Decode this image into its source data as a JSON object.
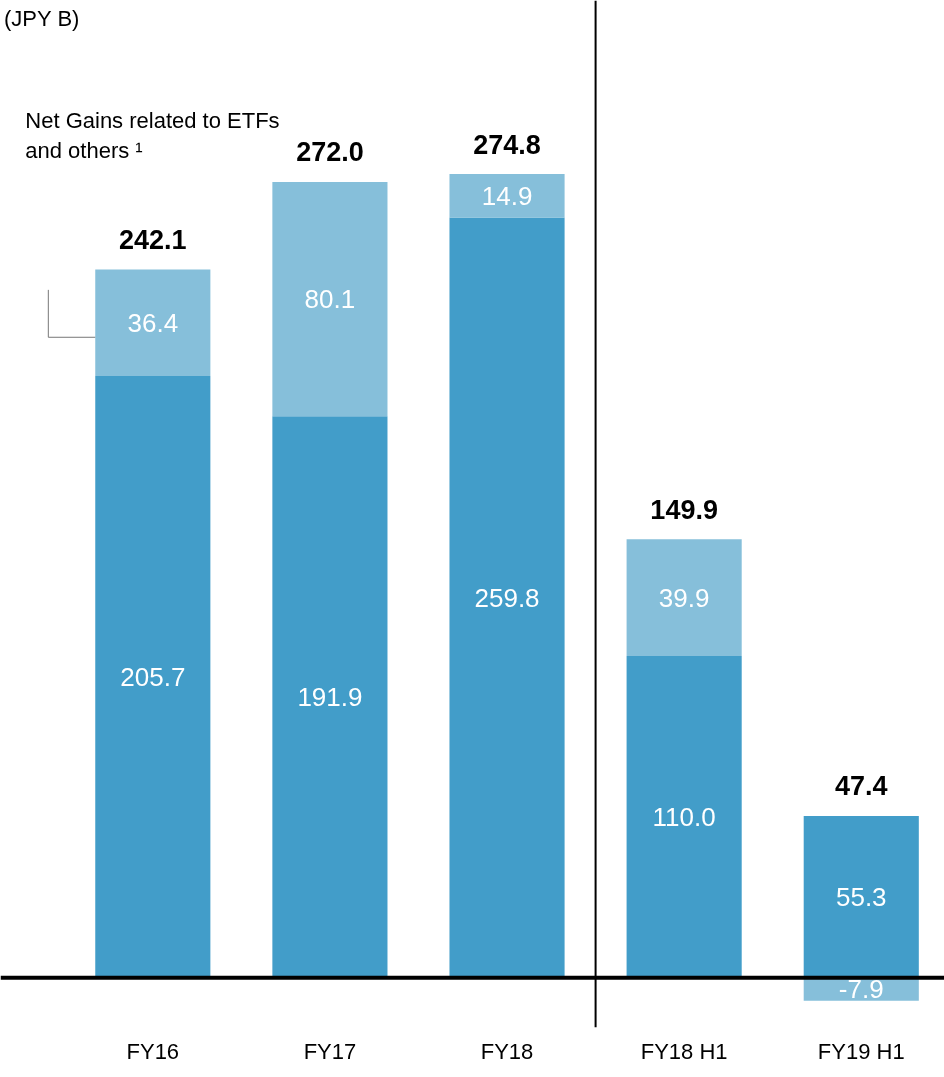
{
  "chart_data": {
    "type": "bar",
    "stacked": true,
    "categories": [
      "FY16",
      "FY17",
      "FY18",
      "FY18 H1",
      "FY19 H1"
    ],
    "series": [
      {
        "color": "#429dc9",
        "values": [
          205.7,
          191.9,
          259.8,
          110.0,
          55.3
        ],
        "value_labels": [
          "205.7",
          "191.9",
          "259.8",
          "110.0",
          "55.3"
        ]
      },
      {
        "name": "Net Gains related to ETFs and others ¹",
        "color": "#86bfda",
        "values": [
          36.4,
          80.1,
          14.9,
          39.9,
          -7.9
        ],
        "value_labels": [
          "36.4",
          "80.1",
          "14.9",
          "39.9",
          "-7.9"
        ]
      }
    ],
    "totals": [
      "242.1",
      "272.0",
      "274.8",
      "149.9",
      "47.4"
    ],
    "annotations": [
      "(JPY B)"
    ]
  }
}
